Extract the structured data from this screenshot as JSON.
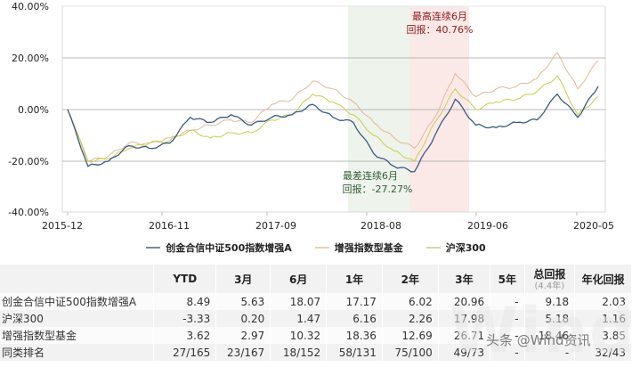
{
  "chart_data": {
    "type": "line",
    "title": "",
    "xlabel": "",
    "ylabel": "",
    "ylim": [
      -40,
      40
    ],
    "y_ticks": [
      "40.00%",
      "20.00%",
      "0.00%",
      "-20.00%",
      "-40.00%"
    ],
    "x_ticks": [
      "2015-12",
      "2016-11",
      "2017-09",
      "2018-08",
      "2019-06",
      "2020-05"
    ],
    "grid": "horizontal",
    "legend_position": "bottom",
    "x": [
      "2015-12",
      "2016-02",
      "2016-04",
      "2016-06",
      "2016-08",
      "2016-11",
      "2017-01",
      "2017-03",
      "2017-05",
      "2017-07",
      "2017-09",
      "2017-11",
      "2018-01",
      "2018-03",
      "2018-05",
      "2018-08",
      "2018-10",
      "2018-12",
      "2019-02",
      "2019-04",
      "2019-06",
      "2019-08",
      "2019-10",
      "2019-12",
      "2020-02",
      "2020-03",
      "2020-05"
    ],
    "series": [
      {
        "name": "创金合信中证500指数增强A",
        "color": "#3a5a80",
        "values": [
          0,
          -22,
          -20,
          -14,
          -15,
          -13,
          -3,
          -5,
          -2,
          -6,
          -3,
          -2,
          2,
          -3,
          -5,
          -17,
          -22,
          -24,
          -10,
          4,
          -6,
          -7,
          -5,
          -4,
          6,
          -3,
          9
        ]
      },
      {
        "name": "增强指数型基金",
        "color": "#e3b89a",
        "values": [
          0,
          -20,
          -18,
          -13,
          -13,
          -11,
          -8,
          -6,
          -4,
          -5,
          2,
          4,
          11,
          8,
          3,
          -5,
          -11,
          -15,
          -3,
          14,
          5,
          8,
          9,
          12,
          22,
          8,
          19
        ]
      },
      {
        "name": "沪深300",
        "color": "#c5cf4a",
        "values": [
          0,
          -20,
          -19,
          -15,
          -13,
          -12,
          -8,
          -11,
          -9,
          -9,
          -4,
          -2,
          6,
          3,
          -2,
          -10,
          -16,
          -20,
          -5,
          8,
          0,
          3,
          4,
          7,
          13,
          -2,
          5
        ]
      }
    ],
    "annotations": [
      {
        "label": "最高连续6月",
        "value": "回报：40.76%",
        "region": "2018-12 to 2019-04",
        "color": "#fbe9e7"
      },
      {
        "label": "最差连续6月",
        "value": "回报：-27.27%",
        "region": "2018-03 to 2018-12",
        "color": "#eef3ec"
      }
    ]
  },
  "chart": {
    "y_ticks": [
      "40.00%",
      "20.00%",
      "0.00%",
      "-20.00%",
      "-40.00%"
    ],
    "x_ticks": [
      "2015-12",
      "2016-11",
      "2017-09",
      "2018-08",
      "2019-06",
      "2020-05"
    ],
    "best_label": "最高连续6月",
    "best_value": "回报：40.76%",
    "worst_label": "最差连续6月",
    "worst_value": "回报：-27.27%"
  },
  "legend": [
    {
      "label": "创金合信中证500指数增强A",
      "color": "#3a5a80"
    },
    {
      "label": "增强指数型基金",
      "color": "#e3d4b8"
    },
    {
      "label": "沪深300",
      "color": "#c5cf8a"
    }
  ],
  "table": {
    "headers": [
      "",
      "YTD",
      "3月",
      "6月",
      "1年",
      "2年",
      "3年",
      "5年",
      "总回报",
      "年化回报"
    ],
    "header_sub": "(4.4年)",
    "rows": [
      {
        "name": "创金合信中证500指数增强A",
        "cells": [
          "8.49",
          "5.63",
          "18.07",
          "17.17",
          "6.02",
          "20.96",
          "-",
          "9.18",
          "2.03"
        ]
      },
      {
        "name": "沪深300",
        "cells": [
          "-3.33",
          "0.20",
          "1.47",
          "6.16",
          "2.26",
          "17.98",
          "-",
          "5.18",
          "1.16"
        ]
      },
      {
        "name": "增强指数型基金",
        "cells": [
          "3.62",
          "2.97",
          "10.32",
          "18.36",
          "12.69",
          "26.71",
          "-",
          "18.46",
          "3.85"
        ]
      },
      {
        "name": "同类排名",
        "cells": [
          "27/165",
          "23/167",
          "18/152",
          "58/131",
          "75/100",
          "49/73",
          "-",
          "-",
          "32/43"
        ]
      }
    ]
  },
  "watermark": {
    "text": "头条 @Wind资讯",
    "bg_text": "Wind"
  }
}
